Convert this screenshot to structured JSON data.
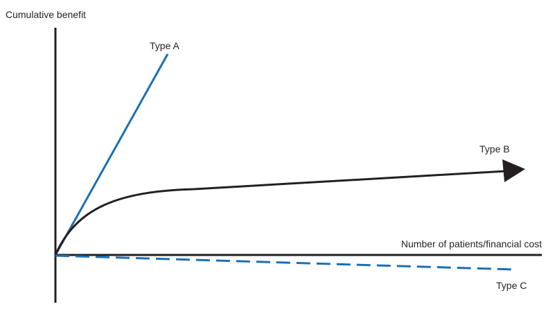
{
  "diagram": {
    "y_axis_label": "Cumulative benefit",
    "x_axis_label": "Number of patients/financial cost",
    "curves": [
      {
        "name": "Type A",
        "shape": "steep straight rise",
        "color": "#1a6fb4",
        "style": "solid"
      },
      {
        "name": "Type B",
        "shape": "concave rise then gentle linear increase",
        "color": "#231f20",
        "style": "solid",
        "arrowhead": true
      },
      {
        "name": "Type C",
        "shape": "slight linear decline below axis",
        "color": "#1a6fb4",
        "style": "dashed"
      }
    ],
    "colors": {
      "axis": "#231f20",
      "blue": "#1a6fb4",
      "black": "#231f20"
    }
  }
}
